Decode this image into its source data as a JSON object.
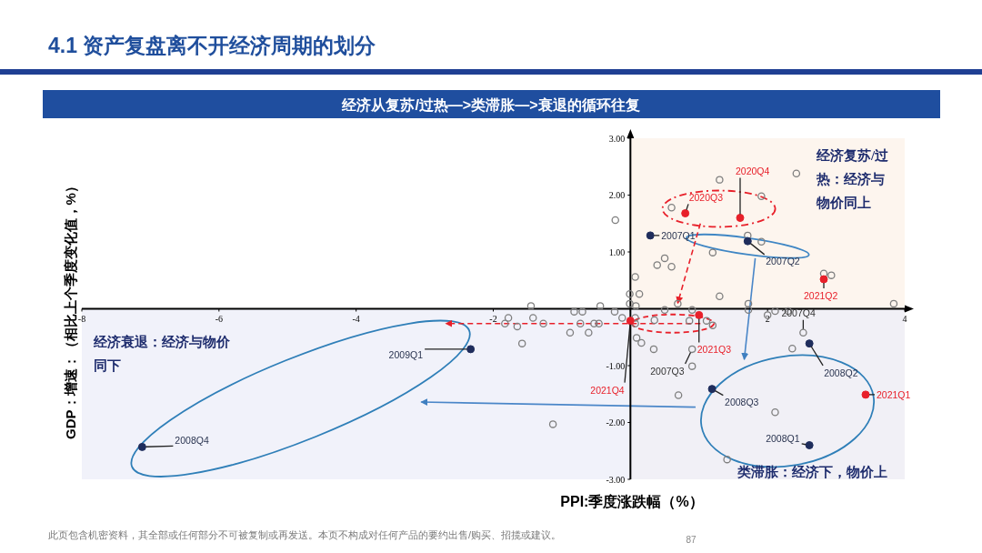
{
  "chart_data": {
    "type": "scatter",
    "title": "4.1 资产复盘离不开经济周期的划分",
    "subtitle": "经济从复苏/过热—>类滞胀—>衰退的循环往复",
    "xlabel": "PPI:季度涨跌幅（%）",
    "ylabel": "GDP：增速：（相比上个季度变化值，%）",
    "xlim": [
      -8,
      4
    ],
    "ylim": [
      -3,
      3
    ],
    "xticks": [
      -8,
      -6,
      -4,
      -2,
      {
        "value": 0,
        "label": null
      },
      2,
      4
    ],
    "yticks": [
      {
        "value": -3,
        "label": "-3.00"
      },
      {
        "value": -2,
        "label": "-2.00"
      },
      {
        "value": -1,
        "label": "-1.00"
      },
      {
        "value": 0,
        "label": null
      },
      {
        "value": 1,
        "label": "1.00"
      },
      {
        "value": 2,
        "label": "2.00"
      },
      {
        "value": 3,
        "label": "3.00"
      }
    ],
    "grid": false,
    "marker": "circle",
    "bands": [
      {
        "axis": "x",
        "from": 0,
        "to": 4,
        "label": null,
        "color": "#fdf5ee"
      },
      {
        "axis": "y",
        "from": -3,
        "to": 0,
        "label": null,
        "color": "#eceef8"
      }
    ],
    "series": [
      {
        "color": "#7f7f7f",
        "x": [
          -0.22,
          0.07,
          -0.01,
          0.13,
          -1.45,
          -0.44,
          0.08,
          -0.82,
          -0.7,
          -0.23,
          -1.78,
          -1.42,
          -0.12,
          0.07,
          -1.83,
          -1.27,
          -0.73,
          -0.53,
          -0.46,
          0.07,
          -1.65,
          -0.88,
          -0.61,
          -1.58,
          -1.13,
          2.42,
          1.3,
          1.91,
          0.6,
          1.71,
          1.91,
          1.2,
          0.5,
          0.39,
          0.6,
          2.82,
          2.93,
          1.3,
          3.84,
          1.72,
          1.72,
          0.69,
          0.5,
          -0.01,
          0.9,
          2.0,
          2.11,
          2.3,
          0.35,
          0.86,
          1.11,
          1.2,
          0.09,
          0.16,
          0.34,
          2.36,
          0.9,
          0.7,
          2.11,
          1.41,
          0.9,
          2.52
        ],
        "values": [
          1.56,
          0.56,
          0.26,
          0.26,
          0.05,
          0.05,
          0.05,
          -0.05,
          -0.05,
          -0.05,
          -0.16,
          -0.16,
          -0.16,
          -0.16,
          -0.26,
          -0.26,
          -0.26,
          -0.26,
          -0.26,
          -0.26,
          -0.31,
          -0.42,
          -0.42,
          -0.61,
          -2.03,
          2.38,
          2.27,
          1.98,
          1.78,
          1.29,
          1.18,
          0.99,
          0.89,
          0.77,
          0.74,
          0.62,
          0.59,
          0.22,
          0.09,
          0.09,
          -0.02,
          0.09,
          -0.02,
          0.09,
          -0.02,
          -0.11,
          -0.04,
          -0.04,
          -0.2,
          -0.21,
          -0.21,
          -0.29,
          -0.51,
          -0.6,
          -0.71,
          -0.7,
          -1.01,
          -1.52,
          -1.82,
          -2.65,
          -0.71,
          -0.42
        ]
      },
      {
        "color": "#1f2d5c",
        "x": [
          0.29,
          1.71,
          2.61,
          2.61,
          1.19,
          -7.12,
          -2.33
        ],
        "values": [
          1.29,
          1.19,
          -2.4,
          -0.61,
          -1.41,
          -2.43,
          -0.71
        ]
      },
      {
        "color": "#e8202a",
        "x": [
          0.8,
          1.6,
          3.43,
          2.82,
          1.0,
          0.0
        ],
        "values": [
          1.68,
          1.6,
          -1.51,
          0.52,
          -0.11,
          -0.21
        ]
      }
    ],
    "annotations": [
      {
        "text": "2007Q1",
        "x": 0.29,
        "y": 1.29
      },
      {
        "text": "2007Q2",
        "x": 1.71,
        "y": 1.19
      },
      {
        "text": "2007Q3",
        "x": 0.9,
        "y": -0.71
      },
      {
        "text": "2007Q4",
        "x": 2.52,
        "y": -0.42
      },
      {
        "text": "2008Q1",
        "x": 2.61,
        "y": -2.4
      },
      {
        "text": "2008Q2",
        "x": 2.61,
        "y": -0.61
      },
      {
        "text": "2008Q3",
        "x": 1.19,
        "y": -1.41
      },
      {
        "text": "2008Q4",
        "x": -7.12,
        "y": -2.43
      },
      {
        "text": "2009Q1",
        "x": -2.33,
        "y": -0.71
      },
      {
        "text": "2020Q3",
        "x": 0.8,
        "y": 1.68
      },
      {
        "text": "2020Q4",
        "x": 1.6,
        "y": 1.6
      },
      {
        "text": "2021Q1",
        "x": 3.43,
        "y": -1.51
      },
      {
        "text": "2021Q2",
        "x": 2.82,
        "y": 0.52
      },
      {
        "text": "2021Q3",
        "x": 1.0,
        "y": -0.11
      },
      {
        "text": "2021Q4",
        "x": 0.0,
        "y": -0.21
      },
      "经济复苏/过热：经济与物价同上",
      "经济衰退：经济与物价同下",
      "类滞胀：经济下，物价上",
      "此页包含机密资料，其全部或任何部分不可被复制或再发送。本页不构成对任何产品的要约出售/购买、招揽或建议。",
      "87"
    ]
  }
}
